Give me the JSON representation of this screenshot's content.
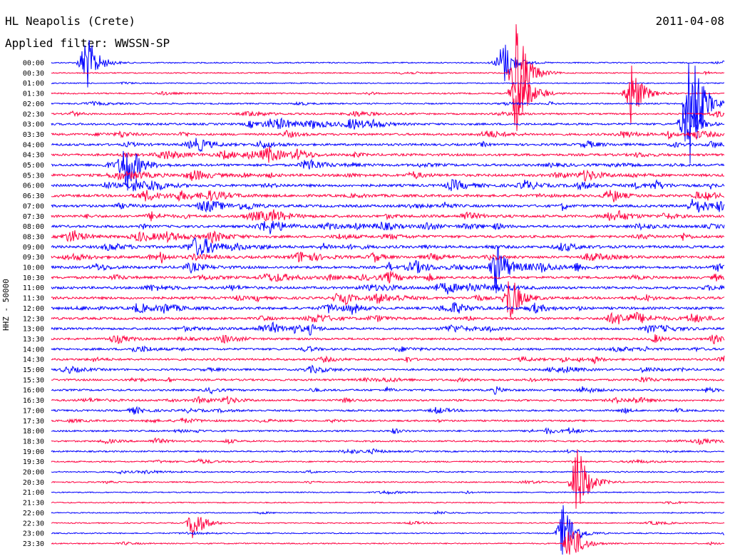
{
  "header": {
    "station": "HL Neapolis (Crete)",
    "date": "2011-04-08",
    "filter": "Applied filter: WWSSN-SP"
  },
  "chart_data": {
    "type": "line",
    "title": "HL Neapolis (Crete)",
    "subtitle": "Applied filter: WWSSN-SP",
    "ylabel": "HHZ - 50000",
    "xlabel": "",
    "grid": false,
    "series_colors": [
      "#0000ff",
      "#ff0040"
    ],
    "rows": [
      "00:00",
      "00:30",
      "01:00",
      "01:30",
      "02:00",
      "02:30",
      "03:00",
      "03:30",
      "04:00",
      "04:30",
      "05:00",
      "05:30",
      "06:00",
      "06:30",
      "07:00",
      "07:30",
      "08:00",
      "08:30",
      "09:00",
      "09:30",
      "10:00",
      "10:30",
      "11:00",
      "11:30",
      "12:00",
      "12:30",
      "13:00",
      "13:30",
      "14:00",
      "14:30",
      "15:00",
      "15:30",
      "16:00",
      "16:30",
      "17:00",
      "17:30",
      "18:00",
      "18:30",
      "19:00",
      "19:30",
      "20:00",
      "20:30",
      "21:00",
      "21:30",
      "22:00",
      "22:30",
      "23:00",
      "23:30"
    ],
    "activity_level": [
      0.15,
      0.12,
      0.1,
      0.25,
      0.25,
      0.35,
      0.55,
      0.6,
      0.65,
      0.7,
      0.75,
      0.8,
      0.8,
      0.8,
      0.8,
      0.8,
      0.75,
      0.75,
      0.8,
      0.8,
      0.8,
      0.75,
      0.75,
      0.75,
      0.8,
      0.7,
      0.65,
      0.6,
      0.6,
      0.55,
      0.5,
      0.5,
      0.5,
      0.5,
      0.45,
      0.4,
      0.4,
      0.35,
      0.3,
      0.25,
      0.2,
      0.18,
      0.12,
      0.1,
      0.12,
      0.12,
      0.12,
      0.15
    ],
    "events": [
      {
        "row": 0,
        "x": 0.05,
        "amp": 4
      },
      {
        "row": 0,
        "x": 0.67,
        "amp": 3
      },
      {
        "row": 1,
        "x": 0.69,
        "amp": 7
      },
      {
        "row": 3,
        "x": 0.69,
        "amp": 5
      },
      {
        "row": 3,
        "x": 0.86,
        "amp": 4
      },
      {
        "row": 4,
        "x": 0.95,
        "amp": 9
      },
      {
        "row": 6,
        "x": 0.94,
        "amp": 3
      },
      {
        "row": 10,
        "x": 0.11,
        "amp": 3
      },
      {
        "row": 20,
        "x": 0.66,
        "amp": 3
      },
      {
        "row": 23,
        "x": 0.68,
        "amp": 3
      },
      {
        "row": 41,
        "x": 0.78,
        "amp": 5
      },
      {
        "row": 45,
        "x": 0.21,
        "amp": 2
      },
      {
        "row": 46,
        "x": 0.76,
        "amp": 4
      },
      {
        "row": 47,
        "x": 0.77,
        "amp": 3
      }
    ]
  }
}
